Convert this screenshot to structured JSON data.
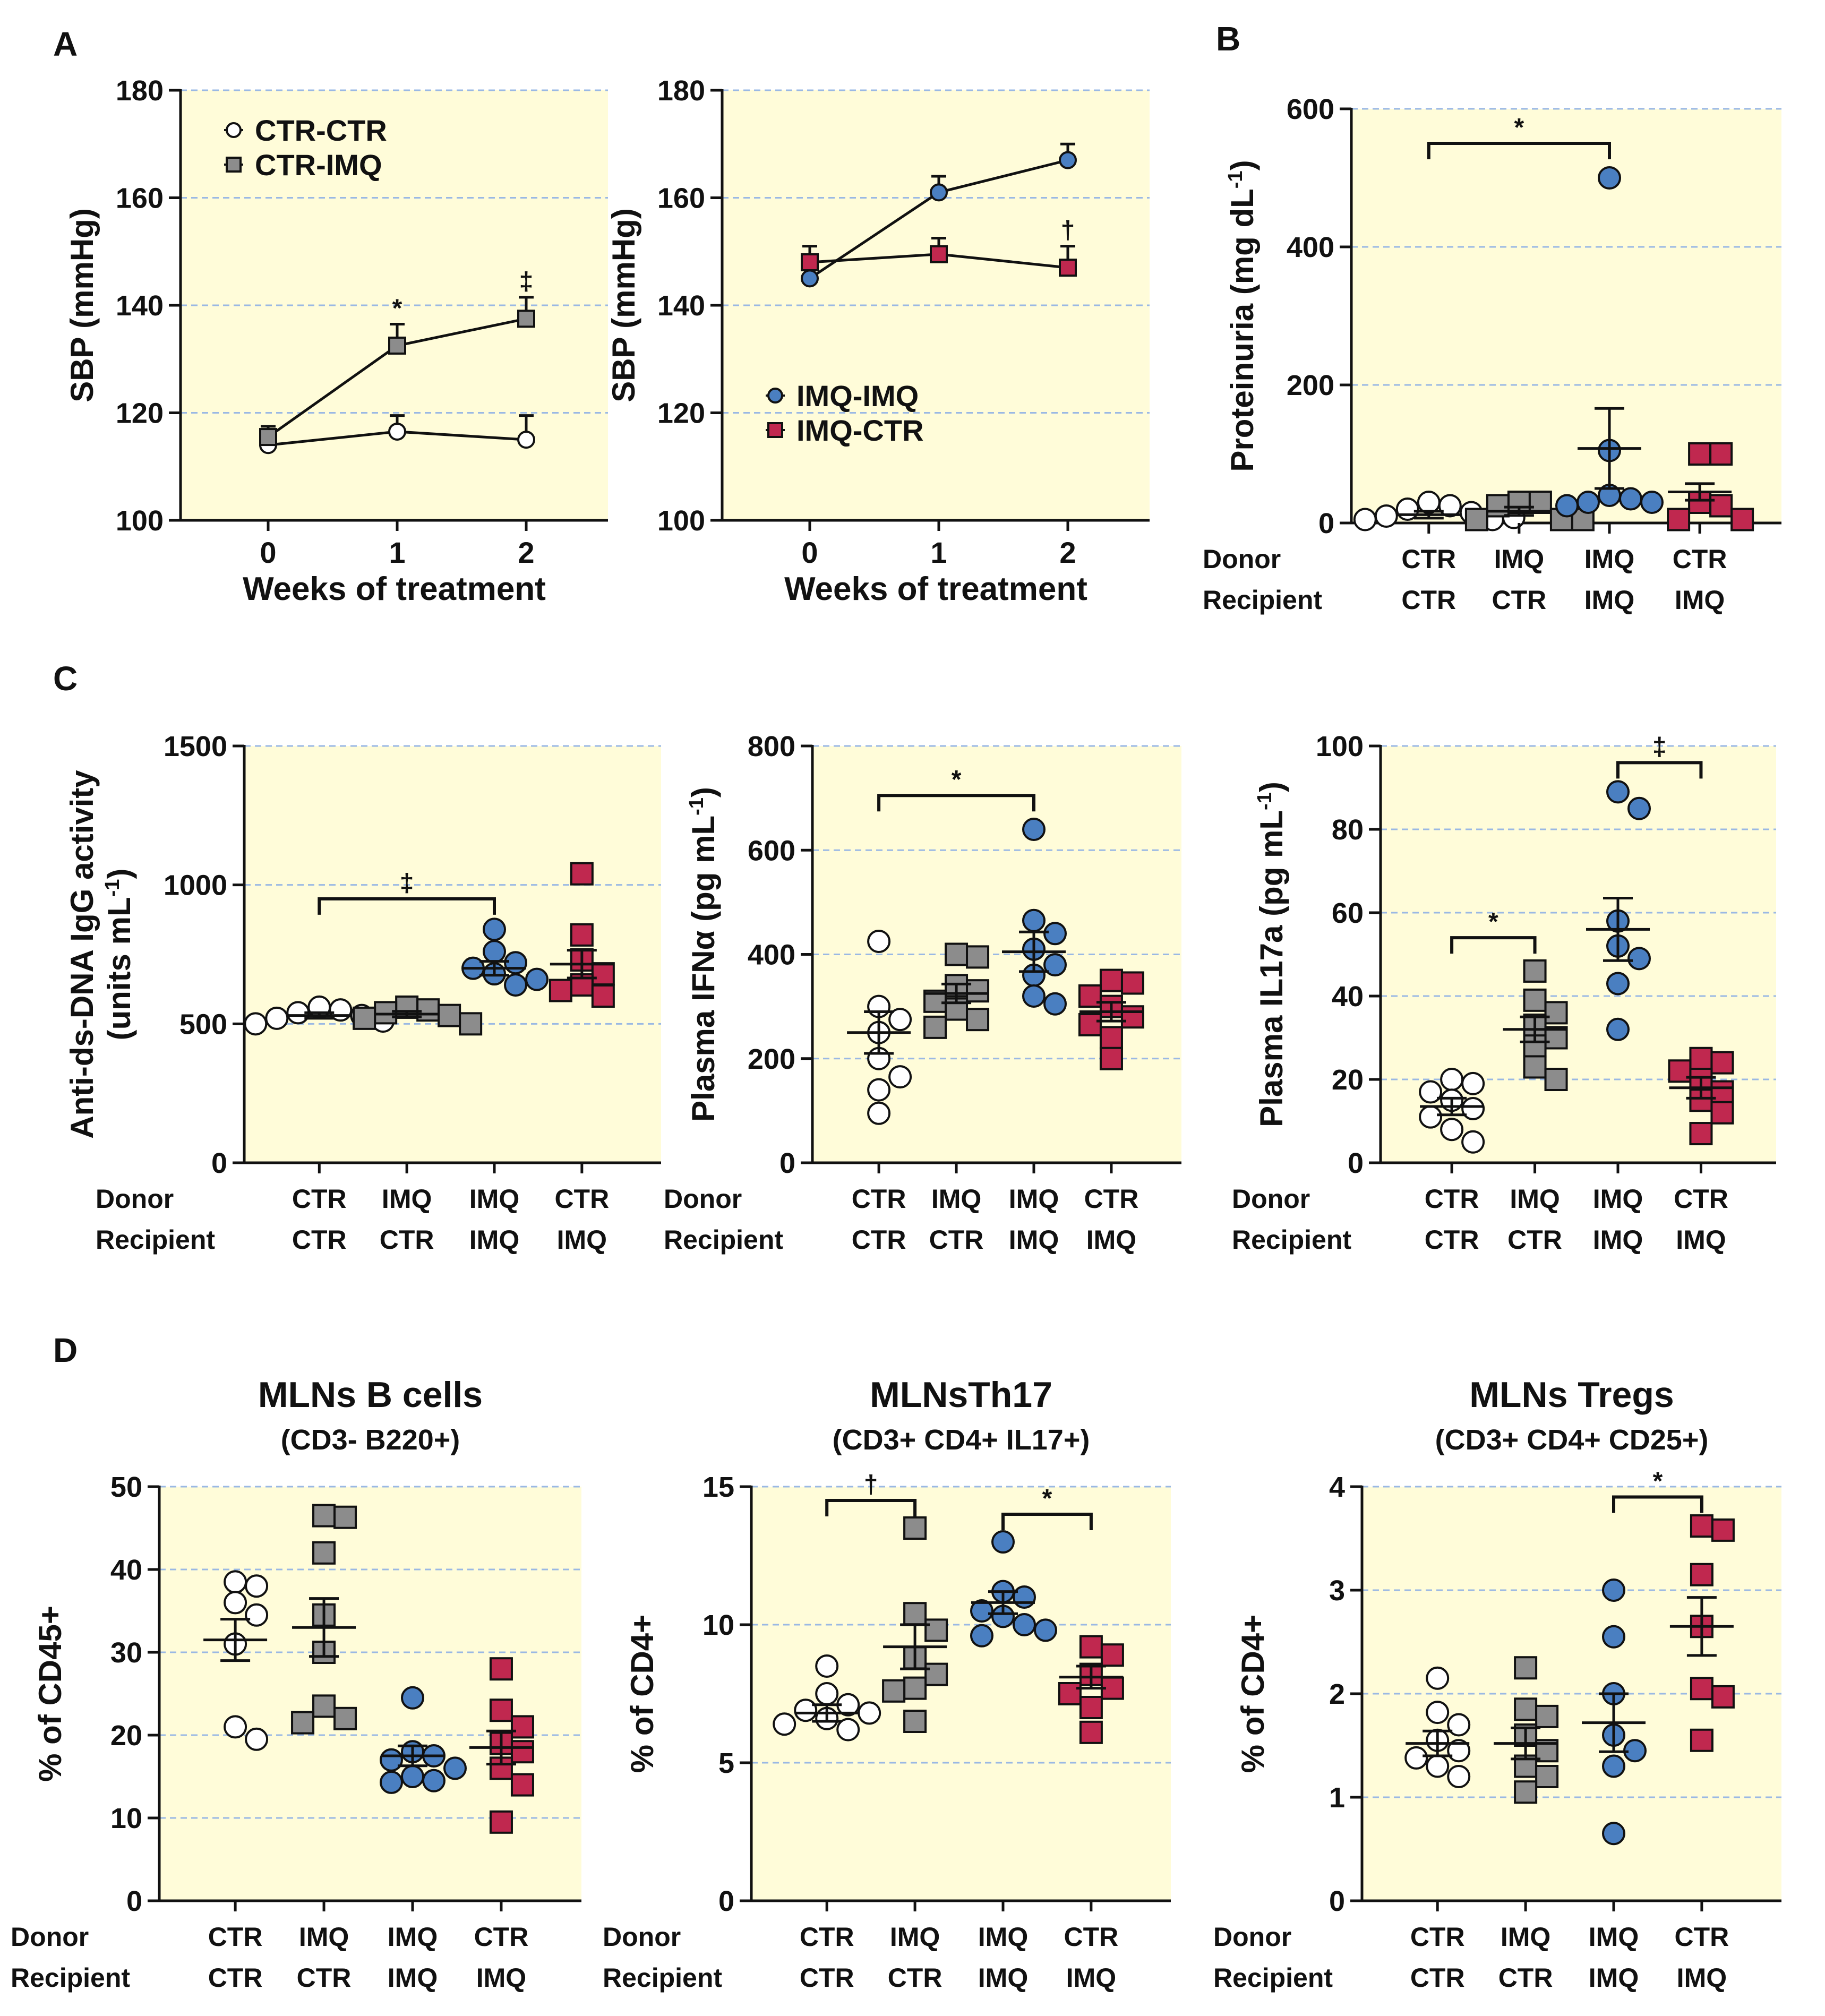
{
  "colors": {
    "panel_bg": "#fffcd9",
    "grid": "#9ab8e4",
    "axis": "#111111",
    "white": "#ffffff",
    "gray": "#8c8c8c",
    "blue": "#4a7fc1",
    "red": "#c0284f"
  },
  "figure_labels": {
    "A": "A",
    "B": "B",
    "C": "C",
    "D": "D"
  },
  "group_rows": {
    "donor_label": "Donor",
    "recipient_label": "Recipient",
    "donor": [
      "CTR",
      "IMQ",
      "IMQ",
      "CTR"
    ],
    "recipient": [
      "CTR",
      "CTR",
      "IMQ",
      "IMQ"
    ]
  },
  "chart_data": [
    {
      "id": "A1",
      "type": "line",
      "xlabel": "Weeks of treatment",
      "ylabel": "SBP (mmHg)",
      "x": [
        0,
        1,
        2
      ],
      "ylim": [
        100,
        180
      ],
      "yticks": [
        100,
        120,
        140,
        160,
        180
      ],
      "legend_position": "top-left",
      "series": [
        {
          "name": "CTR-CTR",
          "marker": "circle",
          "color": "white",
          "values": [
            114,
            116.5,
            115
          ],
          "err": [
            2.5,
            3,
            4.5
          ],
          "sig": [
            "",
            "",
            ""
          ]
        },
        {
          "name": "CTR-IMQ",
          "marker": "square",
          "color": "gray",
          "values": [
            115.5,
            132.5,
            137.5
          ],
          "err": [
            2,
            4,
            4
          ],
          "sig": [
            "",
            "*",
            "‡"
          ]
        }
      ]
    },
    {
      "id": "A2",
      "type": "line",
      "xlabel": "Weeks of treatment",
      "ylabel": "SBP (mmHg)",
      "x": [
        0,
        1,
        2
      ],
      "ylim": [
        100,
        180
      ],
      "yticks": [
        100,
        120,
        140,
        160,
        180
      ],
      "legend_position": "bottom-left",
      "series": [
        {
          "name": "IMQ-IMQ",
          "marker": "circle",
          "color": "blue",
          "values": [
            145,
            161,
            167
          ],
          "err": [
            3,
            3,
            3
          ],
          "sig": [
            "",
            "",
            ""
          ]
        },
        {
          "name": "IMQ-CTR",
          "marker": "square",
          "color": "red",
          "values": [
            148,
            149.5,
            147
          ],
          "err": [
            3,
            3,
            4
          ],
          "sig": [
            "",
            "",
            "†"
          ]
        }
      ]
    },
    {
      "id": "B",
      "type": "scatter",
      "ylabel": "Proteinuria (mg dL",
      "ylabel_sup": "-1",
      "ylabel_end": ")",
      "ylim": [
        0,
        600
      ],
      "yticks": [
        0,
        200,
        400,
        600
      ],
      "groups": [
        {
          "marker": "circle",
          "color": "white",
          "points": [
            30,
            25,
            20,
            15,
            10,
            5,
            5,
            8
          ],
          "mean": 12,
          "sem": 5
        },
        {
          "marker": "square",
          "color": "gray",
          "points": [
            30,
            30,
            25,
            5,
            5,
            5
          ],
          "mean": 17,
          "sem": 6
        },
        {
          "marker": "circle",
          "color": "blue",
          "points": [
            500,
            105,
            40,
            35,
            30,
            30,
            25
          ],
          "mean": 108,
          "sem": 58
        },
        {
          "marker": "square",
          "color": "red",
          "points": [
            100,
            100,
            30,
            25,
            5,
            5
          ],
          "mean": 45,
          "sem": 12
        }
      ],
      "brackets": [
        {
          "from": 0,
          "to": 2,
          "label": "*",
          "y": 550
        }
      ]
    },
    {
      "id": "C1",
      "type": "scatter",
      "ylabel": "Anti-ds-DNA IgG activity",
      "ylabel2": "(units mL",
      "ylabel2_sup": "-1",
      "ylabel2_end": ")",
      "ylim": [
        0,
        1500
      ],
      "yticks": [
        0,
        500,
        1000,
        1500
      ],
      "groups": [
        {
          "marker": "circle",
          "color": "white",
          "points": [
            560,
            550,
            540,
            530,
            520,
            510,
            500
          ],
          "mean": 530,
          "sem": 10
        },
        {
          "marker": "square",
          "color": "gray",
          "points": [
            560,
            550,
            540,
            530,
            520,
            500
          ],
          "mean": 535,
          "sem": 10
        },
        {
          "marker": "circle",
          "color": "blue",
          "points": [
            840,
            760,
            720,
            700,
            680,
            660,
            640
          ],
          "mean": 700,
          "sem": 25
        },
        {
          "marker": "square",
          "color": "red",
          "points": [
            1040,
            820,
            730,
            680,
            640,
            620,
            600
          ],
          "mean": 715,
          "sem": 50
        }
      ],
      "brackets": [
        {
          "from": 0,
          "to": 2,
          "label": "‡",
          "y": 950
        }
      ]
    },
    {
      "id": "C2",
      "type": "scatter",
      "ylabel": "Plasma IFNα (pg mL",
      "ylabel_sup": "-1",
      "ylabel_end": ")",
      "ylim": [
        0,
        800
      ],
      "yticks": [
        0,
        200,
        400,
        600,
        800
      ],
      "groups": [
        {
          "marker": "circle",
          "color": "white",
          "points": [
            425,
            300,
            275,
            250,
            200,
            165,
            140,
            95
          ],
          "mean": 250,
          "sem": 40
        },
        {
          "marker": "square",
          "color": "gray",
          "points": [
            400,
            395,
            340,
            330,
            310,
            295,
            275,
            260
          ],
          "mean": 325,
          "sem": 18
        },
        {
          "marker": "circle",
          "color": "blue",
          "points": [
            640,
            465,
            440,
            410,
            380,
            360,
            320,
            305
          ],
          "mean": 405,
          "sem": 38
        },
        {
          "marker": "square",
          "color": "red",
          "points": [
            350,
            345,
            320,
            300,
            280,
            265,
            240,
            200
          ],
          "mean": 290,
          "sem": 18
        }
      ],
      "brackets": [
        {
          "from": 0,
          "to": 2,
          "label": "*",
          "y": 705
        }
      ]
    },
    {
      "id": "C3",
      "type": "scatter",
      "ylabel": "Plasma IL17a (pg mL",
      "ylabel_sup": "-1",
      "ylabel_end": ")",
      "ylim": [
        0,
        100
      ],
      "yticks": [
        0,
        20,
        40,
        60,
        80,
        100
      ],
      "groups": [
        {
          "marker": "circle",
          "color": "white",
          "points": [
            20,
            19,
            17,
            15,
            13,
            11,
            8,
            5
          ],
          "mean": 13.5,
          "sem": 2
        },
        {
          "marker": "square",
          "color": "gray",
          "points": [
            46,
            39,
            36,
            33,
            30,
            28,
            23,
            20
          ],
          "mean": 32,
          "sem": 3
        },
        {
          "marker": "circle",
          "color": "blue",
          "points": [
            89,
            85,
            58,
            52,
            49,
            43,
            32
          ],
          "mean": 56,
          "sem": 7.5
        },
        {
          "marker": "square",
          "color": "red",
          "points": [
            25,
            24,
            22,
            20,
            17,
            15,
            12,
            7
          ],
          "mean": 18,
          "sem": 2.5
        }
      ],
      "brackets": [
        {
          "from": 0,
          "to": 1,
          "label": "*",
          "y": 54
        },
        {
          "from": 2,
          "to": 3,
          "label": "‡",
          "y": 96
        }
      ]
    },
    {
      "id": "D1",
      "type": "scatter",
      "title": "MLNs B cells",
      "subtitle": "(CD3- B220+)",
      "ylabel": "% of CD45+",
      "ylim": [
        0,
        50
      ],
      "yticks": [
        0,
        10,
        20,
        30,
        40,
        50
      ],
      "groups": [
        {
          "marker": "circle",
          "color": "white",
          "points": [
            38.5,
            38,
            36,
            34.5,
            31,
            21,
            19.5
          ],
          "mean": 31.5,
          "sem": 2.5
        },
        {
          "marker": "square",
          "color": "gray",
          "points": [
            46.5,
            46.3,
            42,
            34.5,
            30,
            23.5,
            22,
            21.5
          ],
          "mean": 33,
          "sem": 3.5
        },
        {
          "marker": "circle",
          "color": "blue",
          "points": [
            24.5,
            18,
            17.5,
            17,
            16,
            15,
            14.5,
            14.3
          ],
          "mean": 17.5,
          "sem": 1.2
        },
        {
          "marker": "square",
          "color": "red",
          "points": [
            28,
            23,
            21,
            19,
            18,
            16,
            14,
            9.5
          ],
          "mean": 18.5,
          "sem": 2
        }
      ],
      "brackets": []
    },
    {
      "id": "D2",
      "type": "scatter",
      "title": "MLNsTh17",
      "subtitle": "(CD3+ CD4+ IL17+)",
      "ylabel": "% of CD4+",
      "ylim": [
        0,
        15
      ],
      "yticks": [
        0,
        5,
        10,
        15
      ],
      "groups": [
        {
          "marker": "circle",
          "color": "white",
          "points": [
            8.5,
            7.5,
            7.1,
            6.9,
            6.8,
            6.6,
            6.4,
            6.2
          ],
          "mean": 6.8,
          "sem": 0.3
        },
        {
          "marker": "square",
          "color": "gray",
          "points": [
            13.5,
            10.4,
            9.8,
            8.8,
            8.2,
            7.7,
            7.6,
            6.5
          ],
          "mean": 9.2,
          "sem": 0.8
        },
        {
          "marker": "circle",
          "color": "blue",
          "points": [
            13,
            11.2,
            11,
            10.5,
            10.3,
            10,
            9.8,
            9.6
          ],
          "mean": 10.8,
          "sem": 0.4
        },
        {
          "marker": "square",
          "color": "red",
          "points": [
            9.2,
            8.9,
            8.2,
            7.7,
            7.5,
            7,
            6.1
          ],
          "mean": 8.1,
          "sem": 0.4
        }
      ],
      "brackets": [
        {
          "from": 0,
          "to": 1,
          "label": "†",
          "y": 14.5
        },
        {
          "from": 2,
          "to": 3,
          "label": "*",
          "y": 14
        }
      ]
    },
    {
      "id": "D3",
      "type": "scatter",
      "title": "MLNs Tregs",
      "subtitle": "(CD3+ CD4+ CD25+)",
      "ylabel": "% of CD4+",
      "ylim": [
        0,
        4
      ],
      "yticks": [
        0,
        1,
        2,
        3,
        4
      ],
      "groups": [
        {
          "marker": "circle",
          "color": "white",
          "points": [
            2.15,
            1.82,
            1.7,
            1.55,
            1.45,
            1.38,
            1.3,
            1.2
          ],
          "mean": 1.52,
          "sem": 0.12
        },
        {
          "marker": "square",
          "color": "gray",
          "points": [
            2.25,
            1.85,
            1.78,
            1.6,
            1.45,
            1.3,
            1.2,
            1.05
          ],
          "mean": 1.52,
          "sem": 0.15
        },
        {
          "marker": "circle",
          "color": "blue",
          "points": [
            3.0,
            2.55,
            2.0,
            1.6,
            1.45,
            1.3,
            0.65
          ],
          "mean": 1.72,
          "sem": 0.28
        },
        {
          "marker": "square",
          "color": "red",
          "points": [
            3.62,
            3.58,
            3.15,
            2.65,
            2.05,
            1.97,
            1.55
          ],
          "mean": 2.65,
          "sem": 0.28
        }
      ],
      "brackets": [
        {
          "from": 2,
          "to": 3,
          "label": "*",
          "y": 3.9
        }
      ]
    }
  ]
}
